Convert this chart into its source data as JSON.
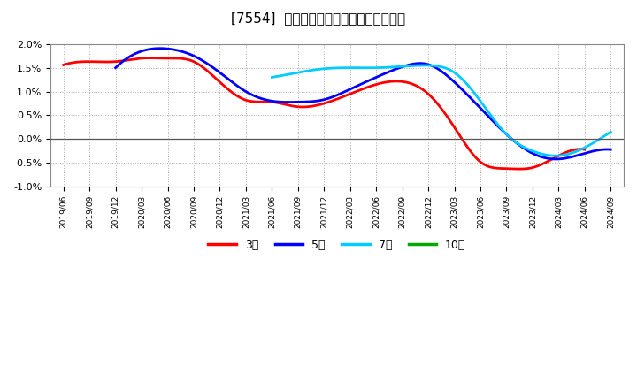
{
  "title": "[7554]  経常利益マージンの平均値の推移",
  "background_color": "#ffffff",
  "plot_bg_color": "#ffffff",
  "grid_color": "#aaaaaa",
  "ylim": [
    -0.01,
    0.02
  ],
  "yticks": [
    -0.01,
    -0.005,
    0.0,
    0.005,
    0.01,
    0.015,
    0.02
  ],
  "ytick_labels": [
    "-1.0%",
    "-0.5%",
    "0.0%",
    "0.5%",
    "1.0%",
    "1.5%",
    "2.0%"
  ],
  "xtick_labels": [
    "2019/06",
    "2019/09",
    "2019/12",
    "2020/03",
    "2020/06",
    "2020/09",
    "2020/12",
    "2021/03",
    "2021/06",
    "2021/09",
    "2021/12",
    "2022/03",
    "2022/06",
    "2022/09",
    "2022/12",
    "2023/03",
    "2023/06",
    "2023/09",
    "2023/12",
    "2024/03",
    "2024/06",
    "2024/09"
  ],
  "series": {
    "3year": {
      "color": "#ff0000",
      "label": "3年",
      "y": [
        0.0156,
        0.0163,
        0.0163,
        0.017,
        0.017,
        0.0163,
        0.012,
        0.0082,
        0.0078,
        0.0068,
        0.0075,
        0.0095,
        0.0115,
        0.0121,
        0.0095,
        0.0025,
        -0.0048,
        -0.0062,
        -0.006,
        -0.0035,
        -0.0022,
        null
      ]
    },
    "5year": {
      "color": "#0000ff",
      "label": "5年",
      "y": [
        null,
        null,
        0.015,
        0.0185,
        0.019,
        0.0175,
        0.014,
        0.01,
        0.008,
        0.0078,
        0.0083,
        0.0105,
        0.013,
        0.0152,
        0.0157,
        0.012,
        0.0065,
        0.001,
        -0.003,
        -0.0042,
        -0.003,
        -0.0022
      ]
    },
    "7year": {
      "color": "#00ccff",
      "label": "7年",
      "y": [
        null,
        null,
        null,
        null,
        null,
        null,
        null,
        null,
        0.013,
        0.014,
        0.0148,
        0.015,
        0.015,
        0.0153,
        0.0155,
        0.014,
        0.008,
        0.001,
        -0.0025,
        -0.0035,
        -0.0018,
        0.0015
      ]
    },
    "10year": {
      "color": "#00aa00",
      "label": "10年",
      "y": [
        null,
        null,
        null,
        null,
        null,
        null,
        null,
        null,
        null,
        null,
        null,
        null,
        null,
        null,
        null,
        null,
        null,
        null,
        null,
        null,
        null,
        null
      ]
    }
  }
}
